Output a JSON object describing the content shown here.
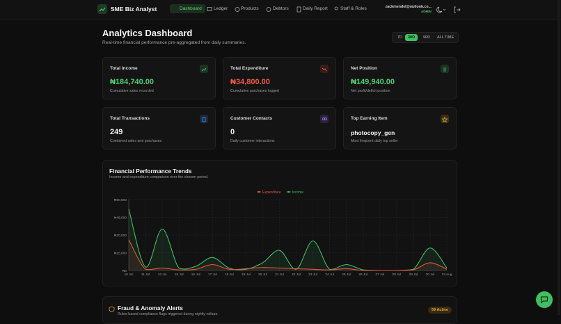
{
  "header": {
    "brand": "SME Biz Analyst",
    "nav": [
      "Dashboard",
      "Ledger",
      "Products",
      "Debtors",
      "Daily Report",
      "Staff & Roles"
    ],
    "user_email": "zackmendel@outlook.co...",
    "user_role": "ADMIN"
  },
  "page": {
    "title": "Analytics Dashboard",
    "subtitle": "Real-time financial performance pre-aggregated from daily summaries.",
    "periods": [
      "7D",
      "30D",
      "90D",
      "ALL TIME"
    ]
  },
  "cards": [
    {
      "title": "Total Income",
      "value": "₦184,740.00",
      "caption": "Cumulative sales recorded"
    },
    {
      "title": "Total Expenditure",
      "value": "₦34,800.00",
      "caption": "Cumulative purchases logged"
    },
    {
      "title": "Net Position",
      "value": "₦149,940.00",
      "caption": "Net profit/deficit position"
    },
    {
      "title": "Total Transactions",
      "value": "249",
      "caption": "Combined sales and purchases"
    },
    {
      "title": "Customer Contacts",
      "value": "0",
      "caption": "Daily customer interactions"
    },
    {
      "title": "Top Earning Item",
      "value": "photocopy_gen",
      "caption": "Most frequent daily top seller"
    }
  ],
  "chart_data": {
    "type": "line",
    "title": "Financial Performance Trends",
    "subtitle": "Income and expenditure comparison over the chosen period.",
    "categories": [
      "10 Jul",
      "11 Jul",
      "13 Jul",
      "15 Jul",
      "16 Jul",
      "17 Jul",
      "18 Jul",
      "19 Jul",
      "20 Jul",
      "21 Jul",
      "22 Jul",
      "23 Jul",
      "24 Jul",
      "25 Jul",
      "26 Jul",
      "27 Jul",
      "28 Jul",
      "29 Jul",
      "30 Jul",
      "13 Aug"
    ],
    "series": [
      {
        "name": "Expenditure",
        "color": "#e5533d",
        "values": [
          26000,
          1000,
          2000,
          500,
          1000,
          5000,
          1000,
          1500,
          2500,
          2000,
          1500,
          1000,
          500,
          1500,
          0,
          0,
          0,
          500,
          6500,
          1000
        ]
      },
      {
        "name": "Income",
        "color": "#3fbf5f",
        "values": [
          52000,
          3000,
          35000,
          2000,
          3500,
          11000,
          2000,
          1000,
          6500,
          17000,
          1000,
          25000,
          1000,
          5000,
          500,
          0,
          0,
          1000,
          19000,
          2000
        ]
      }
    ],
    "ylim": [
      0,
      60000
    ],
    "yticks": [
      {
        "value": 0,
        "label": "₦0"
      },
      {
        "value": 15000,
        "label": "₦15,000"
      },
      {
        "value": 30000,
        "label": "₦30,000"
      },
      {
        "value": 45000,
        "label": "₦45,000"
      },
      {
        "value": 60000,
        "label": "₦60,000"
      }
    ],
    "grid": true,
    "legend": "top"
  },
  "alerts": {
    "title": "Fraud & Anomaly Alerts",
    "badge": "59 Active",
    "subtitle": "Rules-based compliance flags triggered during nightly rollups."
  }
}
